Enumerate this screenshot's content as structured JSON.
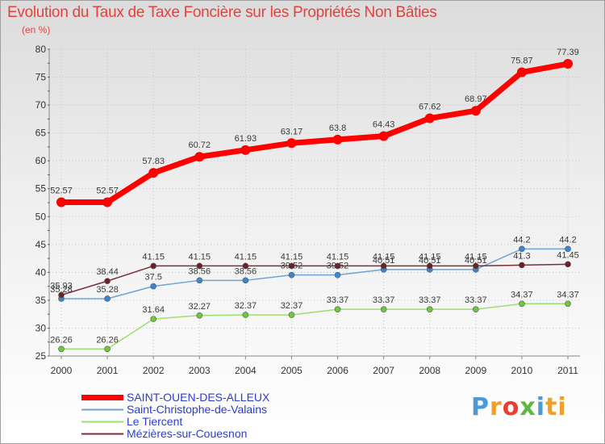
{
  "title": "Evolution du Taux de Taxe Foncière sur les Propriétés Non Bâties",
  "subtitle": "(en %)",
  "logo": {
    "text": "Proxiti",
    "letters": [
      "P",
      "r",
      "o",
      "x",
      "i",
      "ti"
    ]
  },
  "colors": {
    "title": "#e8403c",
    "legend_text": "#2a3dd4",
    "axis_text": "#333333",
    "grid": "#c4c4c4"
  },
  "chart_data": {
    "type": "line",
    "title": "Evolution du Taux de Taxe Foncière sur les Propriétés Non Bâties",
    "ylabel": "(en %)",
    "xlabel": "",
    "x": [
      "2000",
      "2001",
      "2002",
      "2003",
      "2004",
      "2005",
      "2006",
      "2007",
      "2008",
      "2009",
      "2010",
      "2011"
    ],
    "ylim": [
      25,
      80
    ],
    "yticks": [
      25,
      30,
      35,
      40,
      45,
      50,
      55,
      60,
      65,
      70,
      75,
      80
    ],
    "grid": true,
    "legend_position": "bottom-left",
    "series": [
      {
        "name": "SAINT-OUEN-DES-ALLEUX",
        "color": "#ff0000",
        "marker_color": "#ff0000",
        "emphasis": true,
        "values": [
          52.57,
          52.57,
          57.83,
          60.72,
          61.93,
          63.17,
          63.8,
          64.43,
          67.62,
          68.97,
          75.87,
          77.39
        ],
        "labels": [
          "52.57",
          "52.57",
          "57.83",
          "60.72",
          "61.93",
          "63.17",
          "63.8",
          "64.43",
          "67.62",
          "68.97",
          "75.87",
          "77.39"
        ]
      },
      {
        "name": "Saint-Christophe-de-Valains",
        "color": "#6ea3d8",
        "marker_color": "#3a86d0",
        "emphasis": false,
        "values": [
          35.28,
          35.28,
          37.5,
          38.56,
          38.56,
          39.52,
          39.52,
          40.51,
          40.51,
          40.51,
          44.2,
          44.2
        ],
        "labels": [
          "35.28",
          "35.28",
          "37.5",
          "38.56",
          "38.56",
          "39.52",
          "39.52",
          "40.51",
          "40.51",
          "40.51",
          "44.2",
          "44.2"
        ]
      },
      {
        "name": "Le Tiercent",
        "color": "#9ede6e",
        "marker_color": "#6ec83c",
        "emphasis": false,
        "values": [
          26.26,
          26.26,
          31.64,
          32.27,
          32.37,
          32.37,
          33.37,
          33.37,
          33.37,
          33.37,
          34.37,
          34.37
        ],
        "labels": [
          "26.26",
          "26.26",
          "31.64",
          "32.27",
          "32.37",
          "32.37",
          "33.37",
          "33.37",
          "33.37",
          "33.37",
          "34.37",
          "34.37"
        ]
      },
      {
        "name": "Mézières-sur-Couesnon",
        "color": "#7a3038",
        "marker_color": "#6e2028",
        "emphasis": false,
        "values": [
          35.93,
          38.44,
          41.15,
          41.15,
          41.15,
          41.15,
          41.15,
          41.15,
          41.15,
          41.15,
          41.3,
          41.45
        ],
        "labels": [
          "35.93",
          "38.44",
          "41.15",
          "41.15",
          "41.15",
          "41.15",
          "41.15",
          "41.15",
          "41.15",
          "41.15",
          "41.3",
          "41.45"
        ]
      }
    ]
  }
}
